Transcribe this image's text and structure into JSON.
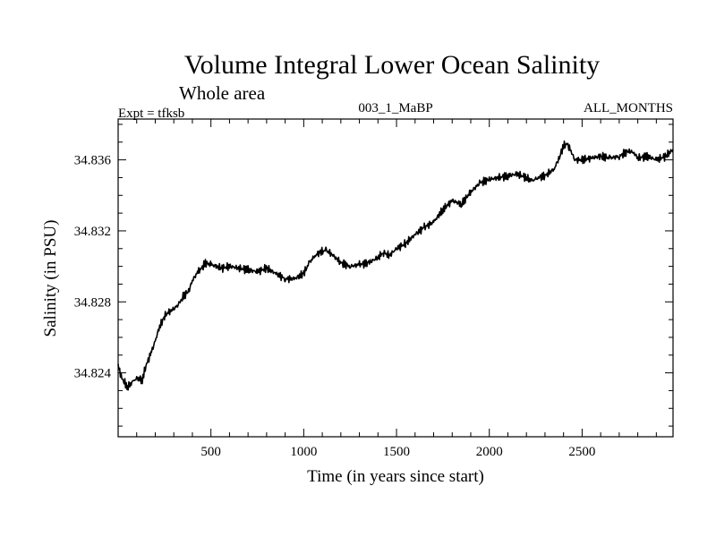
{
  "chart_data": {
    "type": "line",
    "title": "Volume Integral Lower Ocean Salinity",
    "subtitle": "Whole area",
    "info_left": "Expt = tfksb",
    "info_center": "003_1_MaBP",
    "info_right": "ALL_MONTHS",
    "xlabel": "Time (in years since start)",
    "ylabel": "Salinity (in PSU)",
    "xlim": [
      0,
      2990
    ],
    "ylim": [
      34.8204,
      34.8383
    ],
    "x_ticks": [
      500,
      1000,
      1500,
      2000,
      2500
    ],
    "x_tick_labels": [
      "500",
      "1000",
      "1500",
      "2000",
      "2500"
    ],
    "y_ticks": [
      34.824,
      34.828,
      34.832,
      34.836
    ],
    "y_tick_labels": [
      "34.824",
      "34.828",
      "34.832",
      "34.836"
    ],
    "grid": false,
    "series": [
      {
        "name": "Salinity",
        "color": "#000000",
        "x": [
          0,
          20,
          50,
          80,
          100,
          130,
          150,
          180,
          200,
          220,
          250,
          280,
          300,
          330,
          350,
          380,
          400,
          430,
          450,
          470,
          500,
          530,
          560,
          600,
          650,
          700,
          750,
          800,
          850,
          900,
          950,
          1000,
          1030,
          1060,
          1090,
          1120,
          1150,
          1180,
          1200,
          1250,
          1300,
          1350,
          1400,
          1430,
          1460,
          1500,
          1550,
          1600,
          1650,
          1700,
          1750,
          1800,
          1850,
          1900,
          1950,
          2000,
          2050,
          2100,
          2150,
          2200,
          2230,
          2260,
          2300,
          2350,
          2380,
          2400,
          2420,
          2440,
          2460,
          2500,
          2550,
          2600,
          2650,
          2700,
          2750,
          2780,
          2800,
          2850,
          2900,
          2950,
          2990
        ],
        "y": [
          34.8244,
          34.8237,
          34.8232,
          34.8235,
          34.8237,
          34.8236,
          34.8244,
          34.8252,
          34.8258,
          34.8265,
          34.8272,
          34.8275,
          34.8276,
          34.8279,
          34.8283,
          34.8286,
          34.8292,
          34.8297,
          34.8299,
          34.8302,
          34.8301,
          34.83,
          34.8299,
          34.83,
          34.8299,
          34.8298,
          34.8297,
          34.8299,
          34.8296,
          34.8293,
          34.8293,
          34.8296,
          34.8302,
          34.8306,
          34.8308,
          34.8309,
          34.8307,
          34.8304,
          34.8302,
          34.83,
          34.8301,
          34.8302,
          34.8305,
          34.8308,
          34.8306,
          34.831,
          34.8313,
          34.8318,
          34.8322,
          34.8325,
          34.8332,
          34.8337,
          34.8335,
          34.8342,
          34.8347,
          34.8349,
          34.835,
          34.8351,
          34.8352,
          34.835,
          34.8348,
          34.835,
          34.8351,
          34.8355,
          34.8362,
          34.8368,
          34.8369,
          34.8365,
          34.836,
          34.836,
          34.8361,
          34.8362,
          34.8361,
          34.8362,
          34.8365,
          34.8364,
          34.8361,
          34.8362,
          34.836,
          34.8362,
          34.8366
        ]
      }
    ]
  }
}
